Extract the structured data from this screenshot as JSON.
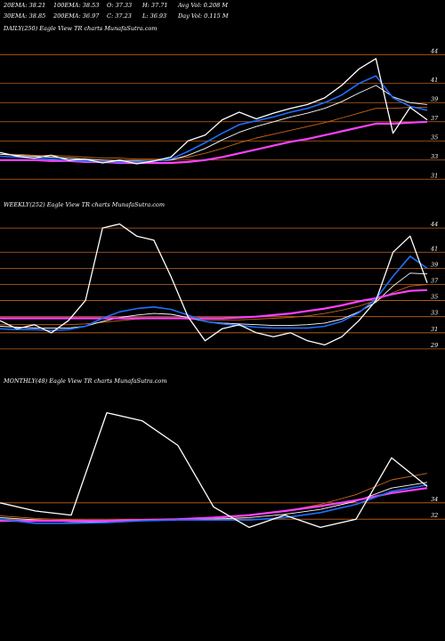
{
  "header": {
    "ema20": "20EMA: 38.21",
    "ema100": "100EMA: 38.53",
    "open": "O: 37.33",
    "high": "H: 37.71",
    "avg_vol": "Avg Vol: 0.208 M",
    "ema30": "30EMA: 38.85",
    "ema200": "200EMA: 36.97",
    "close": "C: 37.23",
    "low": "L: 36.93",
    "day_vol": "Day Vol: 0.115 M"
  },
  "panels": {
    "daily_label": "DAILY(250) Eagle  View  TR charts MunafaSutra.com",
    "weekly_label": "WEEKLY(252) Eagle  View  TR charts MunafaSutra.com",
    "monthly_label": "MONTHLY(48) Eagle  View  TR charts MunafaSutra.com"
  },
  "colors": {
    "price": "#ffffff",
    "ema_fast": "#1e6fff",
    "ema_slow": "#ff40ff",
    "ema_mid": "#ffffff",
    "ema_long": "#c8661a",
    "level_line": "#c8661a",
    "background": "#000000"
  },
  "chart_data": [
    {
      "type": "line",
      "name": "daily",
      "ylim": [
        30,
        46
      ],
      "levels": [
        44,
        41,
        39,
        37,
        35,
        33,
        31
      ],
      "x": [
        0,
        10,
        20,
        30,
        40,
        50,
        60,
        70,
        80,
        90,
        100,
        110,
        120,
        130,
        140,
        150,
        160,
        170,
        180,
        190,
        200,
        210,
        220,
        230,
        240,
        250
      ],
      "series": [
        {
          "role": "price",
          "values": [
            33.8,
            33.4,
            33.2,
            33.5,
            33.0,
            33.1,
            32.7,
            33.0,
            32.6,
            32.9,
            33.3,
            35.0,
            35.6,
            37.2,
            38.0,
            37.3,
            37.9,
            38.4,
            38.8,
            39.5,
            40.8,
            42.5,
            43.6,
            35.8,
            38.5,
            37.2
          ]
        },
        {
          "role": "ema_fast",
          "values": [
            33.4,
            33.3,
            33.2,
            33.1,
            33.0,
            32.9,
            32.8,
            32.8,
            32.8,
            32.9,
            33.1,
            33.9,
            34.8,
            35.8,
            36.7,
            37.1,
            37.5,
            38.0,
            38.4,
            39.0,
            39.8,
            41.0,
            41.8,
            39.5,
            38.6,
            38.2
          ]
        },
        {
          "role": "ema_mid",
          "values": [
            33.6,
            33.5,
            33.4,
            33.3,
            33.2,
            33.1,
            33.0,
            32.9,
            32.9,
            32.9,
            33.0,
            33.5,
            34.2,
            35.1,
            35.9,
            36.5,
            37.0,
            37.5,
            37.9,
            38.4,
            39.1,
            40.0,
            40.8,
            39.6,
            39.0,
            38.8
          ]
        },
        {
          "role": "ema_long",
          "values": [
            33.6,
            33.6,
            33.5,
            33.5,
            33.4,
            33.3,
            33.2,
            33.2,
            33.1,
            33.1,
            33.1,
            33.3,
            33.7,
            34.2,
            34.8,
            35.3,
            35.7,
            36.1,
            36.5,
            36.9,
            37.4,
            37.9,
            38.4,
            38.4,
            38.5,
            38.5
          ]
        },
        {
          "role": "ema_slow",
          "values": [
            33.0,
            33.0,
            33.0,
            32.9,
            32.9,
            32.8,
            32.8,
            32.7,
            32.7,
            32.7,
            32.7,
            32.8,
            33.0,
            33.3,
            33.7,
            34.1,
            34.5,
            34.9,
            35.2,
            35.6,
            36.0,
            36.4,
            36.8,
            36.8,
            36.9,
            37.0
          ]
        }
      ]
    },
    {
      "type": "line",
      "name": "weekly",
      "ylim": [
        27,
        46
      ],
      "levels": [
        44,
        41,
        39,
        37,
        35,
        33,
        31,
        29
      ],
      "x": [
        0,
        10,
        20,
        30,
        40,
        50,
        60,
        70,
        80,
        90,
        100,
        110,
        120,
        130,
        140,
        150,
        160,
        170,
        180,
        190,
        200,
        210,
        220,
        230,
        240,
        250
      ],
      "series": [
        {
          "role": "price",
          "values": [
            32.5,
            31.5,
            32.0,
            31.0,
            32.5,
            35.0,
            44.0,
            44.5,
            43.0,
            42.5,
            38.0,
            33.0,
            30.0,
            31.5,
            32.0,
            31.0,
            30.5,
            31.0,
            30.0,
            29.5,
            30.5,
            32.5,
            35.0,
            41.0,
            43.0,
            37.2
          ]
        },
        {
          "role": "ema_fast",
          "values": [
            31.5,
            31.4,
            31.4,
            31.3,
            31.4,
            31.8,
            32.8,
            33.6,
            34.0,
            34.2,
            33.9,
            33.2,
            32.4,
            32.1,
            31.9,
            31.7,
            31.6,
            31.6,
            31.6,
            31.8,
            32.4,
            33.5,
            35.2,
            38.0,
            40.5,
            39.0
          ]
        },
        {
          "role": "ema_mid",
          "values": [
            31.8,
            31.7,
            31.6,
            31.6,
            31.6,
            31.8,
            32.4,
            32.9,
            33.2,
            33.4,
            33.3,
            32.9,
            32.4,
            32.2,
            32.1,
            32.0,
            31.9,
            31.9,
            32.0,
            32.2,
            32.7,
            33.6,
            34.8,
            36.8,
            38.4,
            38.3
          ]
        },
        {
          "role": "ema_long",
          "values": [
            32.0,
            32.0,
            32.0,
            32.0,
            32.0,
            32.1,
            32.3,
            32.5,
            32.7,
            32.8,
            32.8,
            32.7,
            32.6,
            32.6,
            32.6,
            32.7,
            32.8,
            32.9,
            33.1,
            33.4,
            33.8,
            34.3,
            35.0,
            36.0,
            36.8,
            37.0
          ]
        },
        {
          "role": "ema_slow",
          "values": [
            32.8,
            32.8,
            32.8,
            32.8,
            32.8,
            32.8,
            32.8,
            32.8,
            32.8,
            32.8,
            32.8,
            32.8,
            32.8,
            32.8,
            32.9,
            33.0,
            33.2,
            33.4,
            33.7,
            34.0,
            34.4,
            34.9,
            35.3,
            35.8,
            36.2,
            36.3
          ]
        }
      ]
    },
    {
      "type": "line",
      "name": "monthly",
      "ylim": [
        28,
        48
      ],
      "levels": [
        34,
        32
      ],
      "x": [
        0,
        4,
        8,
        12,
        16,
        20,
        24,
        28,
        32,
        36,
        40,
        44,
        48
      ],
      "series": [
        {
          "role": "price",
          "values": [
            34.0,
            33.0,
            32.5,
            45.0,
            44.0,
            41.0,
            33.5,
            31.0,
            32.5,
            31.0,
            32.0,
            39.5,
            36.0
          ]
        },
        {
          "role": "ema_fast",
          "values": [
            32.0,
            31.5,
            31.5,
            31.6,
            31.8,
            31.9,
            31.9,
            31.9,
            32.2,
            32.8,
            33.8,
            35.4,
            36.2
          ]
        },
        {
          "role": "ema_mid",
          "values": [
            32.2,
            31.9,
            31.7,
            31.7,
            31.8,
            31.9,
            32.0,
            32.2,
            32.6,
            33.2,
            34.2,
            35.8,
            36.5
          ]
        },
        {
          "role": "ema_long",
          "values": [
            32.4,
            32.1,
            31.9,
            31.8,
            31.8,
            31.9,
            32.1,
            32.4,
            33.0,
            33.8,
            35.0,
            36.8,
            37.6
          ]
        },
        {
          "role": "ema_slow",
          "values": [
            31.8,
            31.8,
            31.8,
            31.8,
            31.9,
            32.0,
            32.2,
            32.5,
            33.0,
            33.6,
            34.3,
            35.2,
            35.8
          ]
        }
      ]
    }
  ]
}
